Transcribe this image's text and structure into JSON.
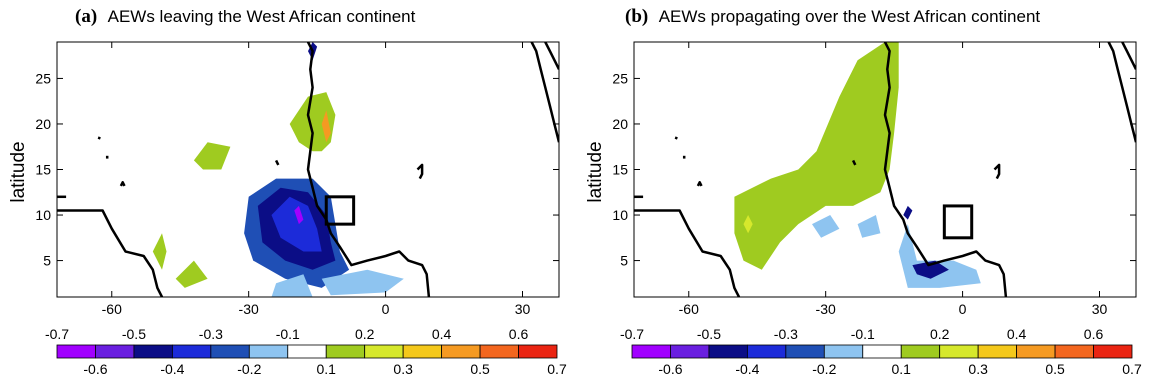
{
  "chart_data": [
    {
      "type": "heatmap",
      "panel_label": "(a)",
      "title": "AEWs leaving the West African continent",
      "xlabel": "",
      "ylabel": "latitude",
      "xlim": [
        -72,
        38
      ],
      "ylim": [
        1,
        29
      ],
      "xticks": [
        -60,
        -30,
        0,
        30
      ],
      "yticks": [
        5,
        10,
        15,
        20,
        25
      ],
      "box": {
        "lon": [
          -13,
          -7
        ],
        "lat": [
          9,
          12
        ]
      },
      "regions": [
        {
          "name": "positive-blob-north",
          "value": 0.2,
          "points": [
            [
              -21,
              20
            ],
            [
              -17,
              23
            ],
            [
              -13,
              23.5
            ],
            [
              -11,
              21
            ],
            [
              -12,
              18
            ],
            [
              -14,
              17
            ],
            [
              -16,
              17
            ],
            [
              -19,
              18
            ]
          ]
        },
        {
          "name": "positive-core-north",
          "value": 0.4,
          "points": [
            [
              -14,
              20
            ],
            [
              -13,
              21.5
            ],
            [
              -12,
              19
            ],
            [
              -13,
              18
            ]
          ]
        },
        {
          "name": "positive-blob-west",
          "value": 0.2,
          "points": [
            [
              -42,
              16
            ],
            [
              -39,
              18
            ],
            [
              -34,
              17.5
            ],
            [
              -36,
              15
            ],
            [
              -40,
              15
            ]
          ]
        },
        {
          "name": "positive-blob-southwest",
          "value": 0.2,
          "points": [
            [
              -51,
              6
            ],
            [
              -49,
              8
            ],
            [
              -48,
              6
            ],
            [
              -49,
              4
            ]
          ]
        },
        {
          "name": "positive-blob-south",
          "value": 0.2,
          "points": [
            [
              -46,
              3
            ],
            [
              -42,
              5
            ],
            [
              -39,
              3
            ],
            [
              -44,
              2
            ]
          ]
        },
        {
          "name": "negative-outer",
          "value": -0.2,
          "points": [
            [
              -30,
              12
            ],
            [
              -24,
              14
            ],
            [
              -16,
              14
            ],
            [
              -12,
              12
            ],
            [
              -11,
              9
            ],
            [
              -10,
              6
            ],
            [
              -8,
              4
            ],
            [
              -14,
              2
            ],
            [
              -22,
              3
            ],
            [
              -29,
              5
            ],
            [
              -31,
              8
            ]
          ]
        },
        {
          "name": "negative-mid",
          "value": -0.3,
          "points": [
            [
              -28,
              11
            ],
            [
              -23,
              13
            ],
            [
              -17,
              12.5
            ],
            [
              -13,
              10
            ],
            [
              -12,
              7
            ],
            [
              -11,
              5
            ],
            [
              -16,
              4
            ],
            [
              -22,
              5
            ],
            [
              -27,
              7
            ]
          ]
        },
        {
          "name": "negative-inner",
          "value": -0.4,
          "points": [
            [
              -25,
              10
            ],
            [
              -21,
              12
            ],
            [
              -17,
              11
            ],
            [
              -15,
              8.5
            ],
            [
              -14,
              6
            ],
            [
              -18,
              6
            ],
            [
              -23,
              7.5
            ]
          ]
        },
        {
          "name": "negative-core",
          "value": -0.6,
          "points": [
            [
              -20,
              10.5
            ],
            [
              -19,
              11
            ],
            [
              -18,
              9.5
            ],
            [
              -19,
              9
            ]
          ]
        },
        {
          "name": "negative-tail",
          "value": -0.1,
          "points": [
            [
              -14,
              3
            ],
            [
              -4,
              4
            ],
            [
              4,
              3
            ],
            [
              0,
              1.5
            ],
            [
              -12,
              1.2
            ]
          ]
        },
        {
          "name": "negative-bottom",
          "value": -0.1,
          "points": [
            [
              -24,
              2.5
            ],
            [
              -18,
              3.5
            ],
            [
              -16,
              1
            ],
            [
              -25,
              1
            ]
          ]
        },
        {
          "name": "coast-strip",
          "value": -0.3,
          "points": [
            [
              -17,
              28
            ],
            [
              -16,
              29
            ],
            [
              -15,
              28.5
            ],
            [
              -16,
              27
            ]
          ]
        }
      ]
    },
    {
      "type": "heatmap",
      "panel_label": "(b)",
      "title": "AEWs propagating over the West African continent",
      "xlabel": "",
      "ylabel": "latitude",
      "xlim": [
        -72,
        38
      ],
      "ylim": [
        1,
        29
      ],
      "xticks": [
        -60,
        -30,
        0,
        30
      ],
      "yticks": [
        5,
        10,
        15,
        20,
        25
      ],
      "box": {
        "lon": [
          -4,
          2
        ],
        "lat": [
          7.5,
          11
        ]
      },
      "regions": [
        {
          "name": "positive-main",
          "value": 0.2,
          "points": [
            [
              -50,
              12
            ],
            [
              -42,
              14
            ],
            [
              -36,
              15
            ],
            [
              -32,
              17
            ],
            [
              -27,
              23
            ],
            [
              -23,
              27
            ],
            [
              -17,
              29
            ],
            [
              -14,
              29
            ],
            [
              -14,
              24
            ],
            [
              -15,
              19
            ],
            [
              -16,
              15
            ],
            [
              -18,
              12.5
            ],
            [
              -24,
              11
            ],
            [
              -30,
              11
            ],
            [
              -36,
              9
            ],
            [
              -40,
              7
            ],
            [
              -44,
              4
            ],
            [
              -48,
              5
            ],
            [
              -50,
              8
            ]
          ]
        },
        {
          "name": "positive-spot",
          "value": 0.3,
          "points": [
            [
              -48,
              9
            ],
            [
              -47,
              10
            ],
            [
              -46,
              9
            ],
            [
              -47,
              8
            ]
          ]
        },
        {
          "name": "negative-patch-west",
          "value": -0.1,
          "points": [
            [
              -33,
              9
            ],
            [
              -29,
              10
            ],
            [
              -27,
              8.5
            ],
            [
              -31,
              7.5
            ]
          ]
        },
        {
          "name": "negative-patch-mid",
          "value": -0.1,
          "points": [
            [
              -23,
              9
            ],
            [
              -19,
              10
            ],
            [
              -18,
              8
            ],
            [
              -22,
              7.5
            ]
          ]
        },
        {
          "name": "negative-south",
          "value": -0.1,
          "points": [
            [
              -14,
              6
            ],
            [
              -12,
              9
            ],
            [
              -10,
              5
            ],
            [
              -2,
              5
            ],
            [
              3,
              4
            ],
            [
              4,
              2.5
            ],
            [
              -5,
              2
            ],
            [
              -12,
              2
            ]
          ]
        },
        {
          "name": "negative-south-core",
          "value": -0.3,
          "points": [
            [
              -11,
              4.5
            ],
            [
              -6,
              5
            ],
            [
              -3,
              4
            ],
            [
              -7,
              3
            ],
            [
              -10,
              3.5
            ]
          ]
        },
        {
          "name": "negative-coast-dot",
          "value": -0.3,
          "points": [
            [
              -13,
              10
            ],
            [
              -12,
              11
            ],
            [
              -11,
              10.5
            ],
            [
              -12,
              9.5
            ]
          ]
        }
      ]
    }
  ],
  "colorbar": {
    "top_labels": [
      "-0.7",
      "-0.5",
      "-0.3",
      "-0.1",
      "0.2",
      "0.4",
      "0.6"
    ],
    "bottom_labels": [
      "-0.6",
      "-0.4",
      "-0.2",
      "0.1",
      "0.3",
      "0.5",
      "0.7"
    ],
    "colors": [
      "#a100ff",
      "#6a1fe0",
      "#0b0d86",
      "#1c2bd9",
      "#1f4fb5",
      "#8ec4f0",
      "#ffffff",
      "#9fcb20",
      "#d6e82c",
      "#f4c81b",
      "#f59a22",
      "#f3661e",
      "#ea2412"
    ]
  },
  "colors": {
    "coastline": "#000000",
    "box": "#000000",
    "value_colors": {
      "-0.6": "#a100ff",
      "-0.4": "#1c2bd9",
      "-0.3": "#0b0d86",
      "-0.2": "#1f4fb5",
      "-0.1": "#8ec4f0",
      "0.2": "#9fcb20",
      "0.3": "#d6e82c",
      "0.4": "#f59a22"
    }
  }
}
